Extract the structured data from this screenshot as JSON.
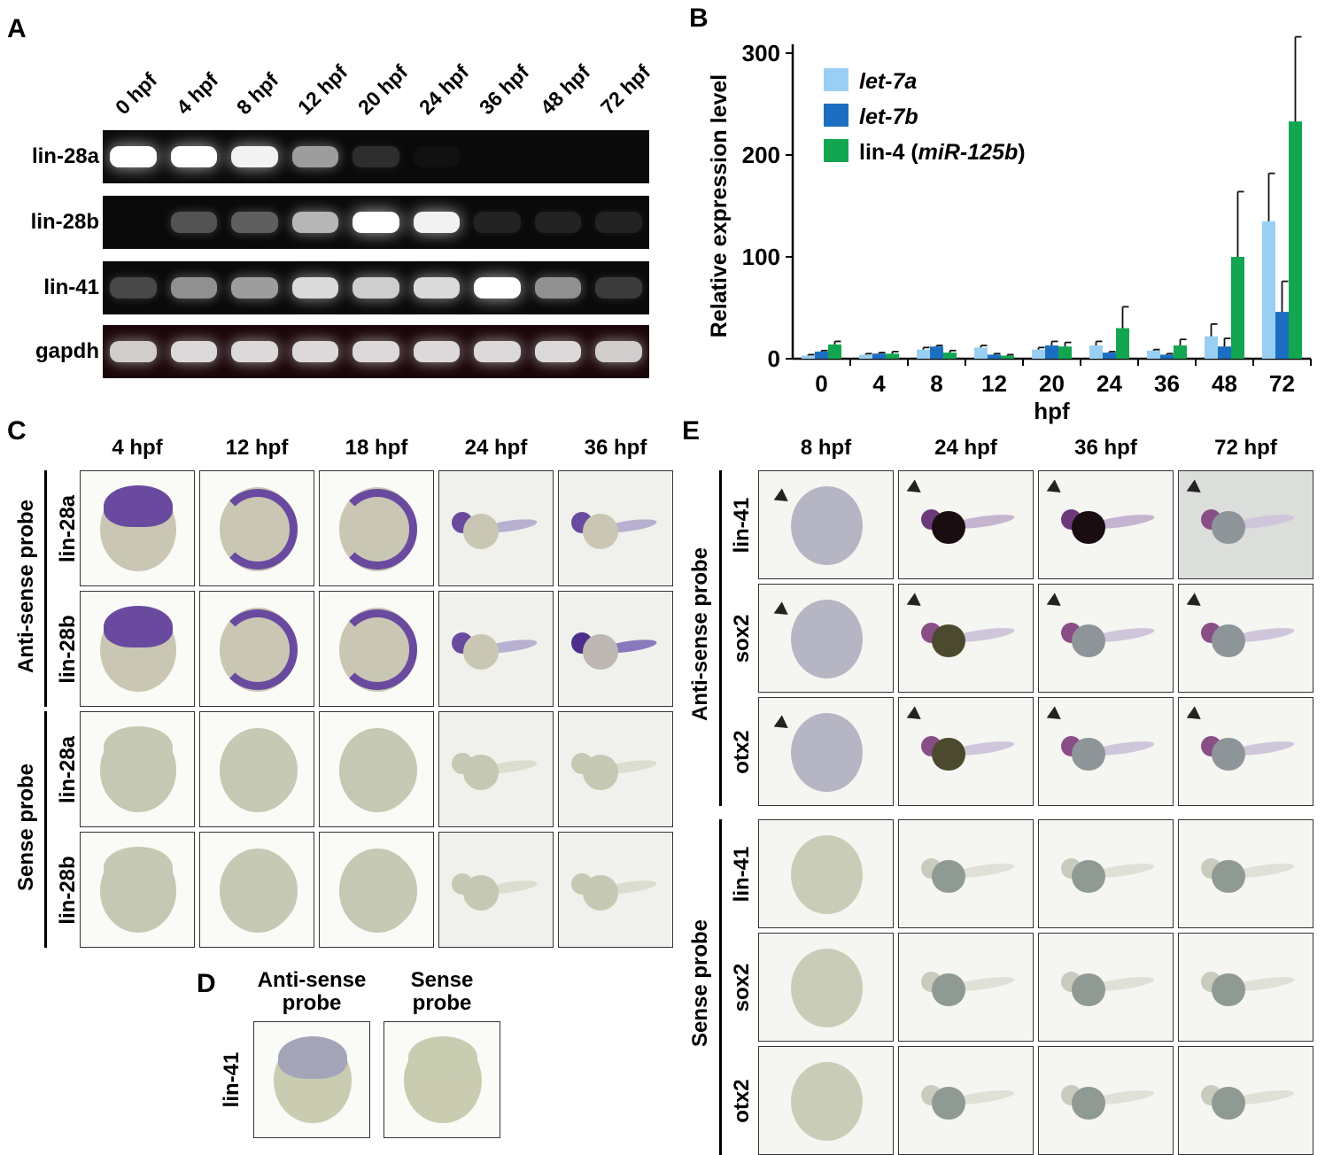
{
  "panels": {
    "A": "A",
    "B": "B",
    "C": "C",
    "D": "D",
    "E": "E"
  },
  "panelA": {
    "lanes": [
      "0 hpf",
      "4 hpf",
      "8 hpf",
      "12 hpf",
      "20 hpf",
      "24 hpf",
      "36 hpf",
      "48 hpf",
      "72 hpf"
    ],
    "genes": [
      {
        "name": "lin-28a",
        "intensity": [
          1.0,
          1.0,
          0.95,
          0.6,
          0.15,
          0.03,
          0,
          0,
          0
        ]
      },
      {
        "name": "lin-28b",
        "intensity": [
          0,
          0.3,
          0.35,
          0.7,
          1.0,
          0.95,
          0.1,
          0.1,
          0.1
        ]
      },
      {
        "name": "lin-41",
        "intensity": [
          0.25,
          0.55,
          0.6,
          0.85,
          0.8,
          0.85,
          1.0,
          0.55,
          0.2
        ]
      },
      {
        "name": "gapdh",
        "intensity": [
          0.8,
          0.85,
          0.85,
          0.85,
          0.85,
          0.85,
          0.85,
          0.85,
          0.8
        ]
      }
    ]
  },
  "chart_data": {
    "type": "bar",
    "categories": [
      "0",
      "4",
      "8",
      "12",
      "20",
      "24",
      "36",
      "48",
      "72"
    ],
    "xlabel": "hpf",
    "ylabel": "Relative expression level",
    "ylim": [
      0,
      300
    ],
    "yticks": [
      "0",
      "100",
      "200",
      "300"
    ],
    "legend_position": "top-left",
    "series": [
      {
        "name": "let-7a",
        "color": "#99cff2",
        "values": [
          3,
          4,
          9,
          11,
          9,
          13,
          8,
          22,
          135
        ],
        "errors": [
          1,
          1,
          2,
          2,
          2,
          4,
          1,
          12,
          47
        ]
      },
      {
        "name": "let-7b",
        "color": "#1c6fc0",
        "values": [
          7,
          5,
          12,
          4,
          13,
          6,
          4,
          12,
          46
        ],
        "errors": [
          1,
          1,
          1,
          1,
          4,
          1,
          1,
          8,
          30
        ]
      },
      {
        "name": "lin-4 (miR-125b)",
        "color": "#12a650",
        "values": [
          14,
          5,
          6,
          3,
          12,
          30,
          13,
          100,
          233
        ],
        "errors": [
          3,
          2,
          2,
          1,
          4,
          21,
          6,
          64,
          83
        ]
      }
    ],
    "legend": [
      {
        "text": "let-7a",
        "italic": true
      },
      {
        "text": "let-7b",
        "italic": true
      },
      {
        "prefix": "lin-4 (",
        "italic_part": "miR-125b",
        "suffix": ")"
      }
    ]
  },
  "panelC": {
    "columns": [
      "4 hpf",
      "12 hpf",
      "18 hpf",
      "24 hpf",
      "36 hpf"
    ],
    "groups": [
      {
        "name": "Anti-sense probe",
        "rows": [
          "lin-28a",
          "lin-28b"
        ]
      },
      {
        "name": "Sense probe",
        "rows": [
          "lin-28a",
          "lin-28b"
        ]
      }
    ]
  },
  "panelD": {
    "columns": [
      "Anti-sense probe",
      "Sense probe"
    ],
    "col_lines": [
      [
        "Anti-sense",
        "probe"
      ],
      [
        "Sense",
        "probe"
      ]
    ],
    "row": "lin-41"
  },
  "panelE": {
    "columns": [
      "8 hpf",
      "24 hpf",
      "36 hpf",
      "72 hpf"
    ],
    "groups": [
      {
        "name": "Anti-sense probe",
        "rows": [
          "lin-41",
          "sox2",
          "otx2"
        ]
      },
      {
        "name": "Sense probe",
        "rows": [
          "lin-41",
          "sox2",
          "otx2"
        ]
      }
    ]
  }
}
